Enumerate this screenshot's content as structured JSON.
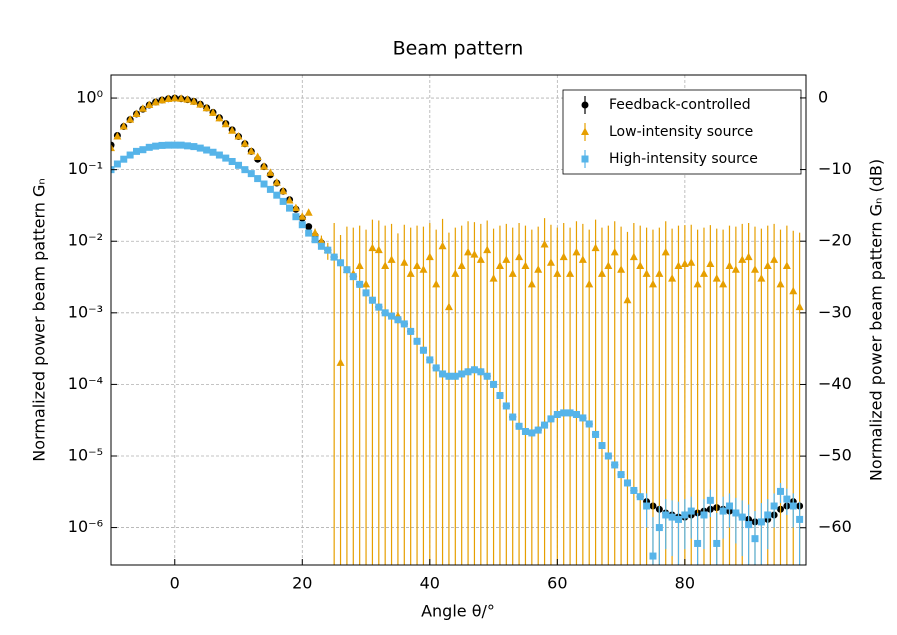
{
  "chart_data": {
    "type": "scatter",
    "title": "Beam pattern",
    "x_label": "Angle θ/°",
    "y_label": "Normalized power beam pattern Gₙ",
    "y2_label": "Normalized power beam pattern Gₙ (dB)",
    "log_y": true,
    "grid": true,
    "legend": "upper right",
    "xlim": [
      -10,
      99
    ],
    "xticks": [
      0,
      20,
      40,
      60,
      80
    ],
    "ylim": [
      3e-07,
      2.1
    ],
    "yticks": [
      {
        "value": 1,
        "label": "10⁰"
      },
      {
        "value": 0.1,
        "label": "10⁻¹"
      },
      {
        "value": 0.01,
        "label": "10⁻²"
      },
      {
        "value": 0.001,
        "label": "10⁻³"
      },
      {
        "value": 0.0001,
        "label": "10⁻⁴"
      },
      {
        "value": 1e-05,
        "label": "10⁻⁵"
      },
      {
        "value": 1e-06,
        "label": "10⁻⁶"
      }
    ],
    "y2lim": [
      -65.2,
      3.2
    ],
    "y2ticks": [
      0,
      {
        "value": -10,
        "label": "−10"
      },
      {
        "value": -20,
        "label": "−20"
      },
      {
        "value": -30,
        "label": "−30"
      },
      {
        "value": -40,
        "label": "−40"
      },
      {
        "value": -50,
        "label": "−50"
      },
      {
        "value": -60,
        "label": "−60"
      }
    ],
    "x": [
      -10,
      -9,
      -8,
      -7,
      -6,
      -5,
      -4,
      -3,
      -2,
      -1,
      0,
      1,
      2,
      3,
      4,
      5,
      6,
      7,
      8,
      9,
      10,
      11,
      12,
      13,
      14,
      15,
      16,
      17,
      18,
      19,
      20,
      21,
      22,
      23,
      24,
      25,
      26,
      27,
      28,
      29,
      30,
      31,
      32,
      33,
      34,
      35,
      36,
      37,
      38,
      39,
      40,
      41,
      42,
      43,
      44,
      45,
      46,
      47,
      48,
      49,
      50,
      51,
      52,
      53,
      54,
      55,
      56,
      57,
      58,
      59,
      60,
      61,
      62,
      63,
      64,
      65,
      66,
      67,
      68,
      69,
      70,
      71,
      72,
      73,
      74,
      75,
      76,
      77,
      78,
      79,
      80,
      81,
      82,
      83,
      84,
      85,
      86,
      87,
      88,
      89,
      90,
      91,
      92,
      93,
      94,
      95,
      96,
      97,
      98
    ],
    "series": [
      {
        "name": "Feedback-controlled",
        "color": "#000000",
        "marker": "circle",
        "values": [
          0.22,
          0.3,
          0.4,
          0.5,
          0.6,
          0.7,
          0.8,
          0.88,
          0.94,
          0.98,
          1.0,
          0.98,
          0.95,
          0.9,
          0.82,
          0.73,
          0.63,
          0.53,
          0.44,
          0.36,
          0.29,
          0.23,
          0.18,
          0.14,
          0.11,
          0.085,
          0.065,
          0.05,
          0.038,
          0.028,
          0.021,
          0.016,
          0.012,
          0.0095,
          0.0075,
          0.006,
          0.005,
          0.004,
          0.0032,
          0.0025,
          0.0019,
          0.0015,
          0.0012,
          0.001,
          0.0009,
          0.0008,
          0.0007,
          0.00055,
          0.0004,
          0.0003,
          0.00022,
          0.00017,
          0.00014,
          0.00013,
          0.00013,
          0.00014,
          0.00015,
          0.00016,
          0.00015,
          0.00013,
          0.0001,
          7e-05,
          5e-05,
          3.5e-05,
          2.6e-05,
          2.2e-05,
          2.1e-05,
          2.3e-05,
          2.7e-05,
          3.3e-05,
          3.8e-05,
          4e-05,
          4e-05,
          3.8e-05,
          3.4e-05,
          2.8e-05,
          2e-05,
          1.4e-05,
          1e-05,
          7.5e-06,
          5.5e-06,
          4.2e-06,
          3.3e-06,
          2.7e-06,
          2.3e-06,
          2e-06,
          1.8e-06,
          1.6e-06,
          1.5e-06,
          1.4e-06,
          1.4e-06,
          1.5e-06,
          1.6e-06,
          1.7e-06,
          1.8e-06,
          1.9e-06,
          1.8e-06,
          1.7e-06,
          1.6e-06,
          1.4e-06,
          1.3e-06,
          1.2e-06,
          1.2e-06,
          1.3e-06,
          1.5e-06,
          1.8e-06,
          2e-06,
          2.3e-06,
          2e-06
        ]
      },
      {
        "name": "Low-intensity source",
        "color": "#e69f00",
        "marker": "triangle",
        "values": [
          0.2,
          0.29,
          0.4,
          0.5,
          0.6,
          0.71,
          0.8,
          0.87,
          0.93,
          0.97,
          0.99,
          0.98,
          0.95,
          0.89,
          0.81,
          0.72,
          0.62,
          0.52,
          0.43,
          0.35,
          0.29,
          0.23,
          0.18,
          0.15,
          0.11,
          0.09,
          0.066,
          0.05,
          0.037,
          0.029,
          0.022,
          0.025,
          0.013,
          0.01,
          0.0075,
          0.006,
          0.0002,
          0.004,
          0.0035,
          0.0045,
          0.0025,
          0.008,
          0.0075,
          0.0045,
          0.0055,
          0.0009,
          0.005,
          0.0035,
          0.0045,
          0.004,
          0.006,
          0.0025,
          0.0085,
          0.0012,
          0.0035,
          0.0045,
          0.007,
          0.0065,
          0.0055,
          0.0075,
          0.003,
          0.0045,
          0.0055,
          0.0035,
          0.006,
          0.0045,
          0.0025,
          0.004,
          0.009,
          0.005,
          0.0035,
          0.006,
          0.0035,
          0.007,
          0.0055,
          0.0025,
          0.008,
          0.0035,
          0.0045,
          0.007,
          0.004,
          0.0015,
          0.006,
          0.0045,
          0.0035,
          0.0025,
          0.0035,
          0.007,
          0.003,
          0.0045,
          0.0048,
          0.005,
          0.0025,
          0.0035,
          0.0048,
          0.003,
          0.0025,
          0.0045,
          0.004,
          0.0055,
          0.006,
          0.004,
          0.003,
          0.0045,
          0.0055,
          0.0025,
          0.0045,
          0.002,
          0.0012
        ],
        "errors": [
          0.002,
          0.002,
          0.002,
          0.002,
          0.002,
          0.002,
          0.002,
          0.002,
          0.002,
          0.002,
          0.002,
          0.002,
          0.002,
          0.002,
          0.002,
          0.002,
          0.002,
          0.002,
          0.002,
          0.002,
          0.002,
          0.002,
          0.002,
          0.002,
          0.002,
          0.002,
          0.002,
          0.002,
          0.002,
          0.002,
          0.002,
          0.002,
          0.002,
          0.002,
          0.002,
          0.012,
          0.012,
          0.012,
          0.012,
          0.012,
          0.012,
          0.012,
          0.012,
          0.012,
          0.012,
          0.012,
          0.012,
          0.012,
          0.012,
          0.012,
          0.012,
          0.012,
          0.012,
          0.012,
          0.012,
          0.012,
          0.012,
          0.012,
          0.012,
          0.012,
          0.012,
          0.012,
          0.012,
          0.012,
          0.012,
          0.012,
          0.012,
          0.012,
          0.012,
          0.012,
          0.012,
          0.012,
          0.012,
          0.012,
          0.012,
          0.012,
          0.012,
          0.012,
          0.012,
          0.012,
          0.012,
          0.012,
          0.012,
          0.012,
          0.012,
          0.012,
          0.012,
          0.012,
          0.012,
          0.012,
          0.012,
          0.012,
          0.012,
          0.012,
          0.012,
          0.012,
          0.012,
          0.012,
          0.012,
          0.012,
          0.012,
          0.012,
          0.012,
          0.012,
          0.012,
          0.012,
          0.012,
          0.012,
          0.012
        ]
      },
      {
        "name": "High-intensity source",
        "color": "#56b4e9",
        "marker": "square",
        "values": [
          0.1,
          0.12,
          0.14,
          0.16,
          0.18,
          0.19,
          0.205,
          0.213,
          0.218,
          0.22,
          0.22,
          0.22,
          0.215,
          0.21,
          0.2,
          0.188,
          0.175,
          0.16,
          0.145,
          0.13,
          0.115,
          0.1,
          0.088,
          0.075,
          0.063,
          0.053,
          0.044,
          0.036,
          0.029,
          0.022,
          0.017,
          0.013,
          0.0105,
          0.0085,
          0.0075,
          0.006,
          0.005,
          0.004,
          0.0032,
          0.0025,
          0.0019,
          0.0015,
          0.0012,
          0.001,
          0.0009,
          0.0008,
          0.0007,
          0.00055,
          0.0004,
          0.0003,
          0.00022,
          0.00017,
          0.00014,
          0.00013,
          0.00013,
          0.00014,
          0.00015,
          0.00016,
          0.00015,
          0.00013,
          0.0001,
          7e-05,
          5e-05,
          3.5e-05,
          2.6e-05,
          2.2e-05,
          2.1e-05,
          2.3e-05,
          2.7e-05,
          3.3e-05,
          3.8e-05,
          4e-05,
          4e-05,
          3.8e-05,
          3.4e-05,
          2.8e-05,
          2e-05,
          1.4e-05,
          1e-05,
          7.5e-06,
          5.5e-06,
          4.2e-06,
          3.3e-06,
          2.7e-06,
          2e-06,
          4e-07,
          1e-06,
          1.5e-06,
          1.4e-06,
          1.3e-06,
          1.5e-06,
          1.7e-06,
          6e-07,
          1.5e-06,
          2.4e-06,
          6e-07,
          1.7e-06,
          2e-06,
          1.6e-06,
          1.4e-06,
          1.1e-06,
          7e-07,
          1.2e-06,
          1.5e-06,
          2e-06,
          3.2e-06,
          2.5e-06,
          2e-06,
          1.3e-06
        ],
        "errors": [
          1e-07,
          1e-07,
          1e-07,
          1e-07,
          1e-07,
          1e-07,
          1e-07,
          1e-07,
          1e-07,
          1e-07,
          1e-07,
          1e-07,
          1e-07,
          1e-07,
          1e-07,
          1e-07,
          1e-07,
          1e-07,
          1e-07,
          1e-07,
          1e-07,
          1e-07,
          1e-07,
          1e-07,
          1e-07,
          1e-07,
          1e-07,
          1e-07,
          1e-07,
          1e-07,
          1e-07,
          1e-07,
          1e-07,
          1e-07,
          1e-07,
          1e-07,
          1e-07,
          1e-07,
          1e-07,
          1e-07,
          1e-07,
          1e-07,
          1e-07,
          1e-07,
          1e-07,
          1e-07,
          1e-07,
          1e-07,
          1e-07,
          1e-07,
          1e-07,
          1e-07,
          1e-07,
          1e-07,
          1e-07,
          1e-07,
          1e-07,
          1e-07,
          1e-07,
          1e-07,
          1e-07,
          1e-07,
          1e-07,
          1e-07,
          1e-07,
          1e-07,
          1e-07,
          1e-07,
          1e-07,
          1e-07,
          1e-07,
          1e-07,
          1e-07,
          1e-07,
          1e-07,
          1e-07,
          1e-07,
          1e-07,
          1e-07,
          1e-07,
          1e-07,
          1e-07,
          1e-07,
          1e-07,
          1e-06,
          1e-06,
          1e-06,
          1e-06,
          1e-06,
          1e-06,
          1e-06,
          1e-06,
          1e-06,
          1e-06,
          1e-06,
          1e-06,
          1e-06,
          1e-06,
          1e-06,
          1e-06,
          1e-06,
          1e-06,
          1e-06,
          1e-06,
          1e-06,
          1e-06,
          1e-06,
          1e-06,
          1e-06
        ]
      }
    ]
  }
}
